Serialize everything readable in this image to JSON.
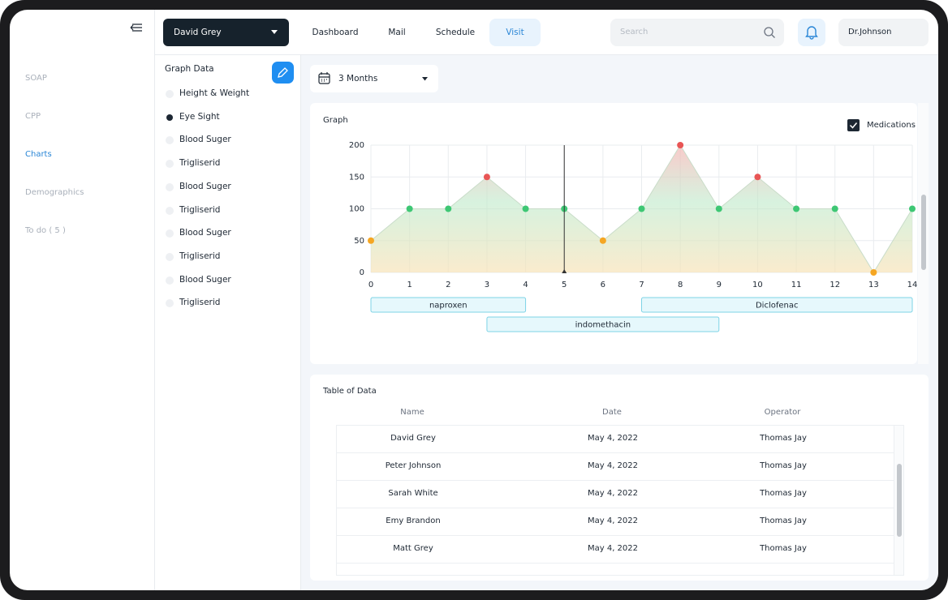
{
  "sidebar": {
    "items": [
      "SOAP",
      "CPP",
      "Charts",
      "Demographics",
      "To do ( 5 )"
    ],
    "active": 2
  },
  "header": {
    "patient": "David Grey",
    "nav": [
      "Dashboard",
      "Mail",
      "Schedule",
      "Visit"
    ],
    "active": 3,
    "search_placeholder": "Search",
    "user": "Dr.Johnson"
  },
  "graph_list": {
    "title": "Graph Data",
    "items": [
      "Height & Weight",
      "Eye Sight",
      "Blood Suger",
      "Trigliserid",
      "Blood Suger",
      "Trigliserid",
      "Blood Suger",
      "Trigliserid",
      "Blood Suger",
      "Trigliserid"
    ],
    "selected": 1
  },
  "range": "3 Months",
  "chart_data": {
    "type": "area",
    "title": "Graph",
    "legend": "Medications",
    "x": [
      0,
      1,
      2,
      3,
      4,
      5,
      6,
      7,
      8,
      9,
      10,
      11,
      12,
      13,
      14
    ],
    "values": [
      50,
      100,
      100,
      150,
      100,
      100,
      50,
      100,
      200,
      100,
      150,
      100,
      100,
      0,
      100
    ],
    "point_colors": [
      "#f5a623",
      "#3ec774",
      "#3ec774",
      "#e85555",
      "#3ec774",
      "#3ec774",
      "#f5a623",
      "#3ec774",
      "#e85555",
      "#3ec774",
      "#e85555",
      "#3ec774",
      "#3ec774",
      "#f5a623",
      "#3ec774"
    ],
    "xlim": [
      0,
      14
    ],
    "xticks": [
      0,
      1,
      2,
      3,
      4,
      5,
      6,
      7,
      8,
      9,
      10,
      11,
      12,
      13,
      14
    ],
    "ylim": [
      0,
      200
    ],
    "yticks": [
      0,
      50,
      100,
      150,
      200
    ],
    "grid": true,
    "cursor_x": 5,
    "medications": [
      {
        "name": "naproxen",
        "start": 0,
        "end": 4
      },
      {
        "name": "Diclofenac",
        "start": 7,
        "end": 14
      },
      {
        "name": "indomethacin",
        "start": 3,
        "end": 9
      }
    ]
  },
  "table": {
    "title": "Table of Data",
    "columns": [
      "Name",
      "Date",
      "Operator"
    ],
    "rows": [
      [
        "David Grey",
        "May 4, 2022",
        "Thomas Jay"
      ],
      [
        "Peter Johnson",
        "May 4, 2022",
        "Thomas Jay"
      ],
      [
        "Sarah White",
        "May 4, 2022",
        "Thomas Jay"
      ],
      [
        "Emy Brandon",
        "May 4, 2022",
        "Thomas Jay"
      ],
      [
        "Matt Grey",
        "May 4, 2022",
        "Thomas Jay"
      ]
    ]
  }
}
